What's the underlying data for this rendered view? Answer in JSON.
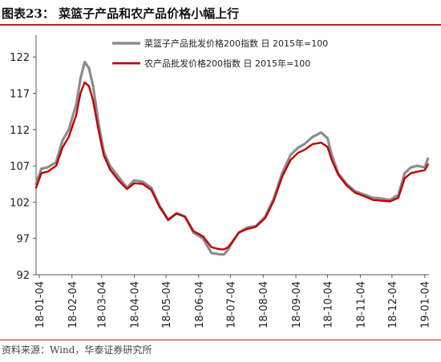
{
  "header": {
    "title": "图表23：  菜篮子产品和农产品价格小幅上行"
  },
  "source": "资料来源：Wind，华泰证券研究所",
  "colors": {
    "series_1": "#8c8c8c",
    "series_2": "#c00000",
    "header_rule": "#b22222"
  },
  "chart_data": {
    "type": "line",
    "title": "",
    "xlabel": "",
    "ylabel": "",
    "ylim": [
      92,
      125
    ],
    "yticks": [
      92,
      97,
      102,
      107,
      112,
      117,
      122
    ],
    "xticks": [
      "18-01-04",
      "18-02-04",
      "18-03-04",
      "18-04-04",
      "18-05-04",
      "18-06-04",
      "18-07-04",
      "18-08-04",
      "18-09-04",
      "18-10-04",
      "18-11-04",
      "18-12-04",
      "19-01-04"
    ],
    "xlim": [
      "2018-01-01",
      "2019-01-08"
    ],
    "legend_position": "top-right",
    "grid": false,
    "series": [
      {
        "name": "菜篮子产品批发价格200指数 日 2015年=100",
        "x": [
          "2018-01-01",
          "2018-01-06",
          "2018-01-12",
          "2018-01-20",
          "2018-01-26",
          "2018-02-01",
          "2018-02-08",
          "2018-02-12",
          "2018-02-16",
          "2018-02-20",
          "2018-02-24",
          "2018-03-01",
          "2018-03-06",
          "2018-03-12",
          "2018-03-20",
          "2018-03-28",
          "2018-04-04",
          "2018-04-12",
          "2018-04-20",
          "2018-04-28",
          "2018-05-06",
          "2018-05-14",
          "2018-05-22",
          "2018-05-30",
          "2018-06-08",
          "2018-06-16",
          "2018-06-24",
          "2018-06-28",
          "2018-07-02",
          "2018-07-06",
          "2018-07-12",
          "2018-07-20",
          "2018-07-28",
          "2018-08-06",
          "2018-08-14",
          "2018-08-22",
          "2018-08-30",
          "2018-09-06",
          "2018-09-12",
          "2018-09-20",
          "2018-09-28",
          "2018-10-04",
          "2018-10-08",
          "2018-10-14",
          "2018-10-22",
          "2018-10-30",
          "2018-11-08",
          "2018-11-16",
          "2018-11-24",
          "2018-12-02",
          "2018-12-10",
          "2018-12-16",
          "2018-12-22",
          "2018-12-28",
          "2019-01-04",
          "2019-01-07"
        ],
        "values": [
          104.5,
          106.6,
          106.8,
          107.5,
          110.5,
          112.0,
          115.5,
          119.0,
          121.3,
          120.5,
          118.0,
          113.0,
          109.0,
          107.0,
          105.5,
          104.0,
          105.0,
          104.8,
          104.0,
          101.5,
          99.5,
          100.5,
          100.0,
          97.8,
          97.0,
          95.0,
          94.8,
          94.8,
          95.5,
          96.5,
          97.8,
          98.5,
          98.7,
          100.0,
          102.5,
          106.0,
          108.5,
          109.5,
          110.0,
          111.0,
          111.6,
          110.8,
          108.5,
          106.0,
          104.5,
          103.5,
          103.0,
          102.6,
          102.5,
          102.3,
          103.0,
          106.0,
          106.8,
          107.0,
          106.8,
          108.0
        ]
      },
      {
        "name": "农产品批发价格200指数 日 2015年=100",
        "x": [
          "2018-01-01",
          "2018-01-06",
          "2018-01-12",
          "2018-01-20",
          "2018-01-26",
          "2018-02-01",
          "2018-02-08",
          "2018-02-12",
          "2018-02-16",
          "2018-02-20",
          "2018-02-24",
          "2018-03-01",
          "2018-03-06",
          "2018-03-12",
          "2018-03-20",
          "2018-03-28",
          "2018-04-04",
          "2018-04-12",
          "2018-04-20",
          "2018-04-28",
          "2018-05-06",
          "2018-05-14",
          "2018-05-22",
          "2018-05-30",
          "2018-06-08",
          "2018-06-16",
          "2018-06-24",
          "2018-06-28",
          "2018-07-02",
          "2018-07-06",
          "2018-07-12",
          "2018-07-20",
          "2018-07-28",
          "2018-08-06",
          "2018-08-14",
          "2018-08-22",
          "2018-08-30",
          "2018-09-06",
          "2018-09-12",
          "2018-09-20",
          "2018-09-28",
          "2018-10-04",
          "2018-10-08",
          "2018-10-14",
          "2018-10-22",
          "2018-10-30",
          "2018-11-08",
          "2018-11-16",
          "2018-11-24",
          "2018-12-02",
          "2018-12-10",
          "2018-12-16",
          "2018-12-22",
          "2018-12-28",
          "2019-01-04",
          "2019-01-07"
        ],
        "values": [
          104.0,
          106.0,
          106.2,
          107.0,
          109.5,
          111.0,
          114.0,
          117.0,
          118.5,
          118.0,
          116.0,
          112.0,
          108.5,
          106.5,
          105.0,
          103.8,
          104.6,
          104.5,
          103.7,
          101.3,
          99.6,
          100.4,
          100.0,
          98.0,
          97.3,
          95.8,
          95.5,
          95.5,
          95.8,
          96.6,
          97.8,
          98.3,
          98.6,
          99.8,
          102.2,
          105.5,
          107.8,
          108.8,
          109.2,
          110.0,
          110.2,
          109.6,
          107.8,
          105.8,
          104.3,
          103.3,
          102.8,
          102.3,
          102.2,
          102.1,
          102.6,
          105.3,
          106.0,
          106.2,
          106.4,
          107.2
        ]
      }
    ]
  }
}
